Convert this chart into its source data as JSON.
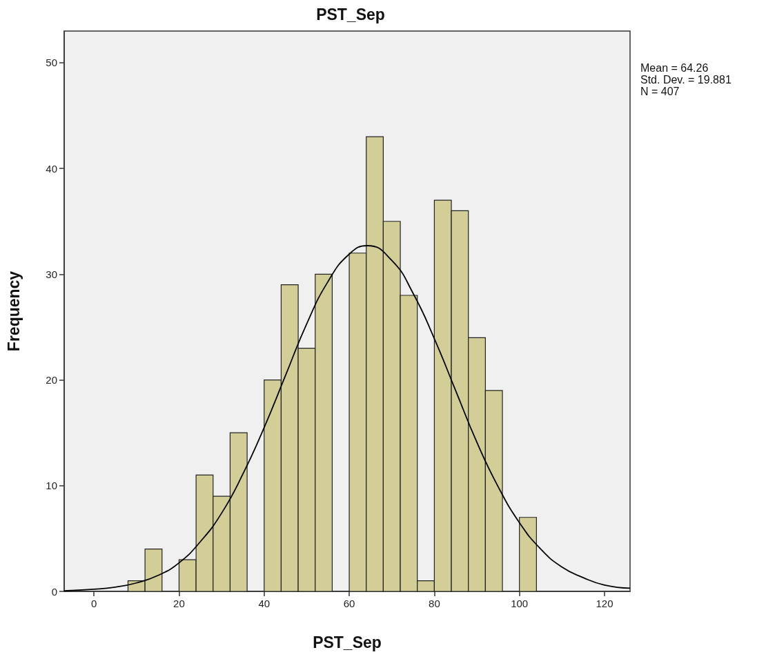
{
  "chart_data": {
    "type": "histogram",
    "title": "PST_Sep",
    "xlabel": "PST_Sep",
    "ylabel": "Frequency",
    "annotations": [
      "Mean = 64.26",
      "Std. Dev. = 19.881",
      "N = 407"
    ],
    "bins": [
      8,
      12,
      16,
      20,
      24,
      28,
      32,
      36,
      40,
      44,
      48,
      52,
      56,
      60,
      64,
      68,
      72,
      76,
      80,
      84,
      88,
      92,
      96,
      100,
      104
    ],
    "series": [
      {
        "color": "#d3ce98",
        "values": [
          1,
          4,
          0,
          3,
          11,
          9,
          15,
          0,
          20,
          29,
          23,
          30,
          0,
          32,
          43,
          35,
          28,
          1,
          37,
          36,
          24,
          19,
          0,
          7
        ]
      },
      {
        "type": "line",
        "color": "#000000",
        "marker": "none",
        "x": [
          -7,
          0,
          5,
          10,
          15,
          20,
          25,
          30,
          35,
          40,
          45,
          50,
          55,
          60,
          64.26,
          70,
          75,
          80,
          85,
          90,
          95,
          100,
          105,
          110,
          115,
          120,
          126
        ],
        "values": [
          0.05,
          0.2,
          0.4,
          0.8,
          1.5,
          2.7,
          4.7,
          7.4,
          11.1,
          15.5,
          20.4,
          25.3,
          29.3,
          31.9,
          32.7,
          31.3,
          28.2,
          23.9,
          19.0,
          14.1,
          9.9,
          6.5,
          4.0,
          2.3,
          1.3,
          0.6,
          0.3
        ]
      }
    ],
    "xlim": [
      -7,
      126
    ],
    "xticks": [
      0,
      20,
      40,
      60,
      80,
      100,
      120
    ],
    "ylim": [
      0,
      53
    ],
    "yticks": [
      0,
      10,
      20,
      30,
      40,
      50
    ],
    "grid": false
  }
}
